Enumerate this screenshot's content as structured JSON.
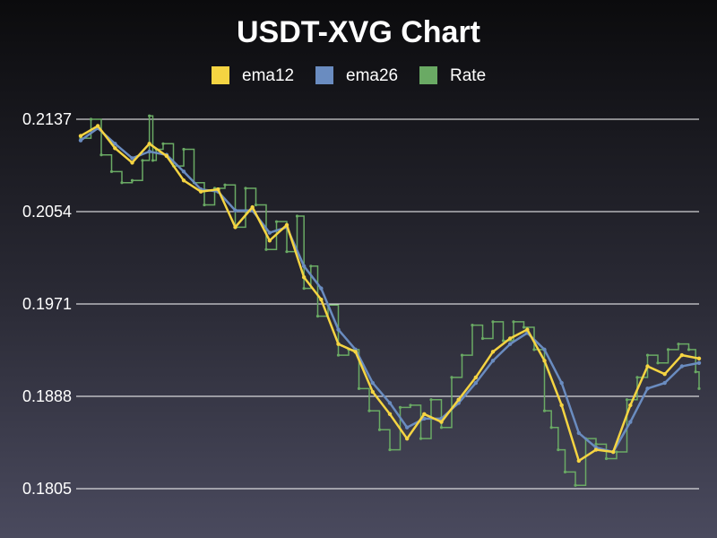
{
  "chart_data": {
    "type": "line",
    "title": "USDT-XVG Chart",
    "xlabel": "",
    "ylabel": "",
    "ylim": [
      0.1805,
      0.2137
    ],
    "y_ticks": [
      "0.2137",
      "0.2054",
      "0.1971",
      "0.1888",
      "0.1805"
    ],
    "grid": true,
    "legend_position": "top-center",
    "x_range": [
      0,
      180
    ],
    "series": [
      {
        "name": "ema12",
        "color": "#f5d442",
        "x": [
          0,
          5,
          10,
          15,
          20,
          25,
          30,
          35,
          40,
          45,
          50,
          55,
          60,
          65,
          70,
          75,
          80,
          85,
          90,
          95,
          100,
          105,
          110,
          115,
          120,
          125,
          130,
          135,
          140,
          145,
          150,
          155,
          160,
          165,
          170,
          175,
          180
        ],
        "values": [
          0.2122,
          0.2131,
          0.2111,
          0.2098,
          0.2115,
          0.2104,
          0.2082,
          0.2072,
          0.2074,
          0.204,
          0.2058,
          0.2028,
          0.2042,
          0.1995,
          0.1975,
          0.1935,
          0.1928,
          0.1892,
          0.1872,
          0.185,
          0.1872,
          0.1865,
          0.1885,
          0.1905,
          0.1928,
          0.194,
          0.1948,
          0.192,
          0.188,
          0.183,
          0.184,
          0.1838,
          0.188,
          0.1915,
          0.1908,
          0.1925,
          0.1922
        ]
      },
      {
        "name": "ema26",
        "color": "#6a8cc0",
        "x": [
          0,
          5,
          10,
          15,
          20,
          25,
          30,
          35,
          40,
          45,
          50,
          55,
          60,
          65,
          70,
          75,
          80,
          85,
          90,
          95,
          100,
          105,
          110,
          115,
          120,
          125,
          130,
          135,
          140,
          145,
          150,
          155,
          160,
          165,
          170,
          175,
          180
        ],
        "values": [
          0.2118,
          0.2129,
          0.2115,
          0.2102,
          0.2108,
          0.2105,
          0.209,
          0.2074,
          0.2072,
          0.2055,
          0.2055,
          0.2035,
          0.204,
          0.2005,
          0.1985,
          0.1948,
          0.193,
          0.19,
          0.1882,
          0.186,
          0.1868,
          0.1868,
          0.1882,
          0.19,
          0.192,
          0.1935,
          0.1945,
          0.193,
          0.19,
          0.1855,
          0.1842,
          0.1838,
          0.1865,
          0.1895,
          0.19,
          0.1915,
          0.1918
        ]
      },
      {
        "name": "Rate",
        "color": "#6aaa64",
        "x": [
          0,
          3,
          6,
          9,
          12,
          15,
          18,
          20,
          21,
          22,
          24,
          27,
          30,
          33,
          36,
          39,
          42,
          45,
          48,
          51,
          54,
          57,
          60,
          63,
          65,
          67,
          69,
          72,
          75,
          78,
          81,
          84,
          87,
          90,
          93,
          96,
          99,
          102,
          105,
          108,
          111,
          114,
          117,
          120,
          123,
          126,
          129,
          132,
          135,
          137,
          139,
          141,
          144,
          147,
          150,
          153,
          156,
          159,
          162,
          165,
          168,
          171,
          174,
          177,
          179,
          180
        ],
        "values": [
          0.212,
          0.2137,
          0.2105,
          0.209,
          0.208,
          0.2082,
          0.21,
          0.214,
          0.21,
          0.211,
          0.2115,
          0.2095,
          0.211,
          0.208,
          0.206,
          0.2075,
          0.2078,
          0.204,
          0.2075,
          0.206,
          0.202,
          0.2045,
          0.2018,
          0.205,
          0.1985,
          0.2005,
          0.196,
          0.197,
          0.1925,
          0.193,
          0.1895,
          0.1875,
          0.1858,
          0.184,
          0.1878,
          0.188,
          0.185,
          0.1885,
          0.186,
          0.1905,
          0.1925,
          0.1952,
          0.194,
          0.1955,
          0.1938,
          0.1955,
          0.195,
          0.193,
          0.1875,
          0.186,
          0.184,
          0.182,
          0.1808,
          0.185,
          0.1845,
          0.1832,
          0.1838,
          0.1885,
          0.1905,
          0.1925,
          0.1918,
          0.193,
          0.1935,
          0.193,
          0.191,
          0.1895
        ]
      }
    ]
  }
}
